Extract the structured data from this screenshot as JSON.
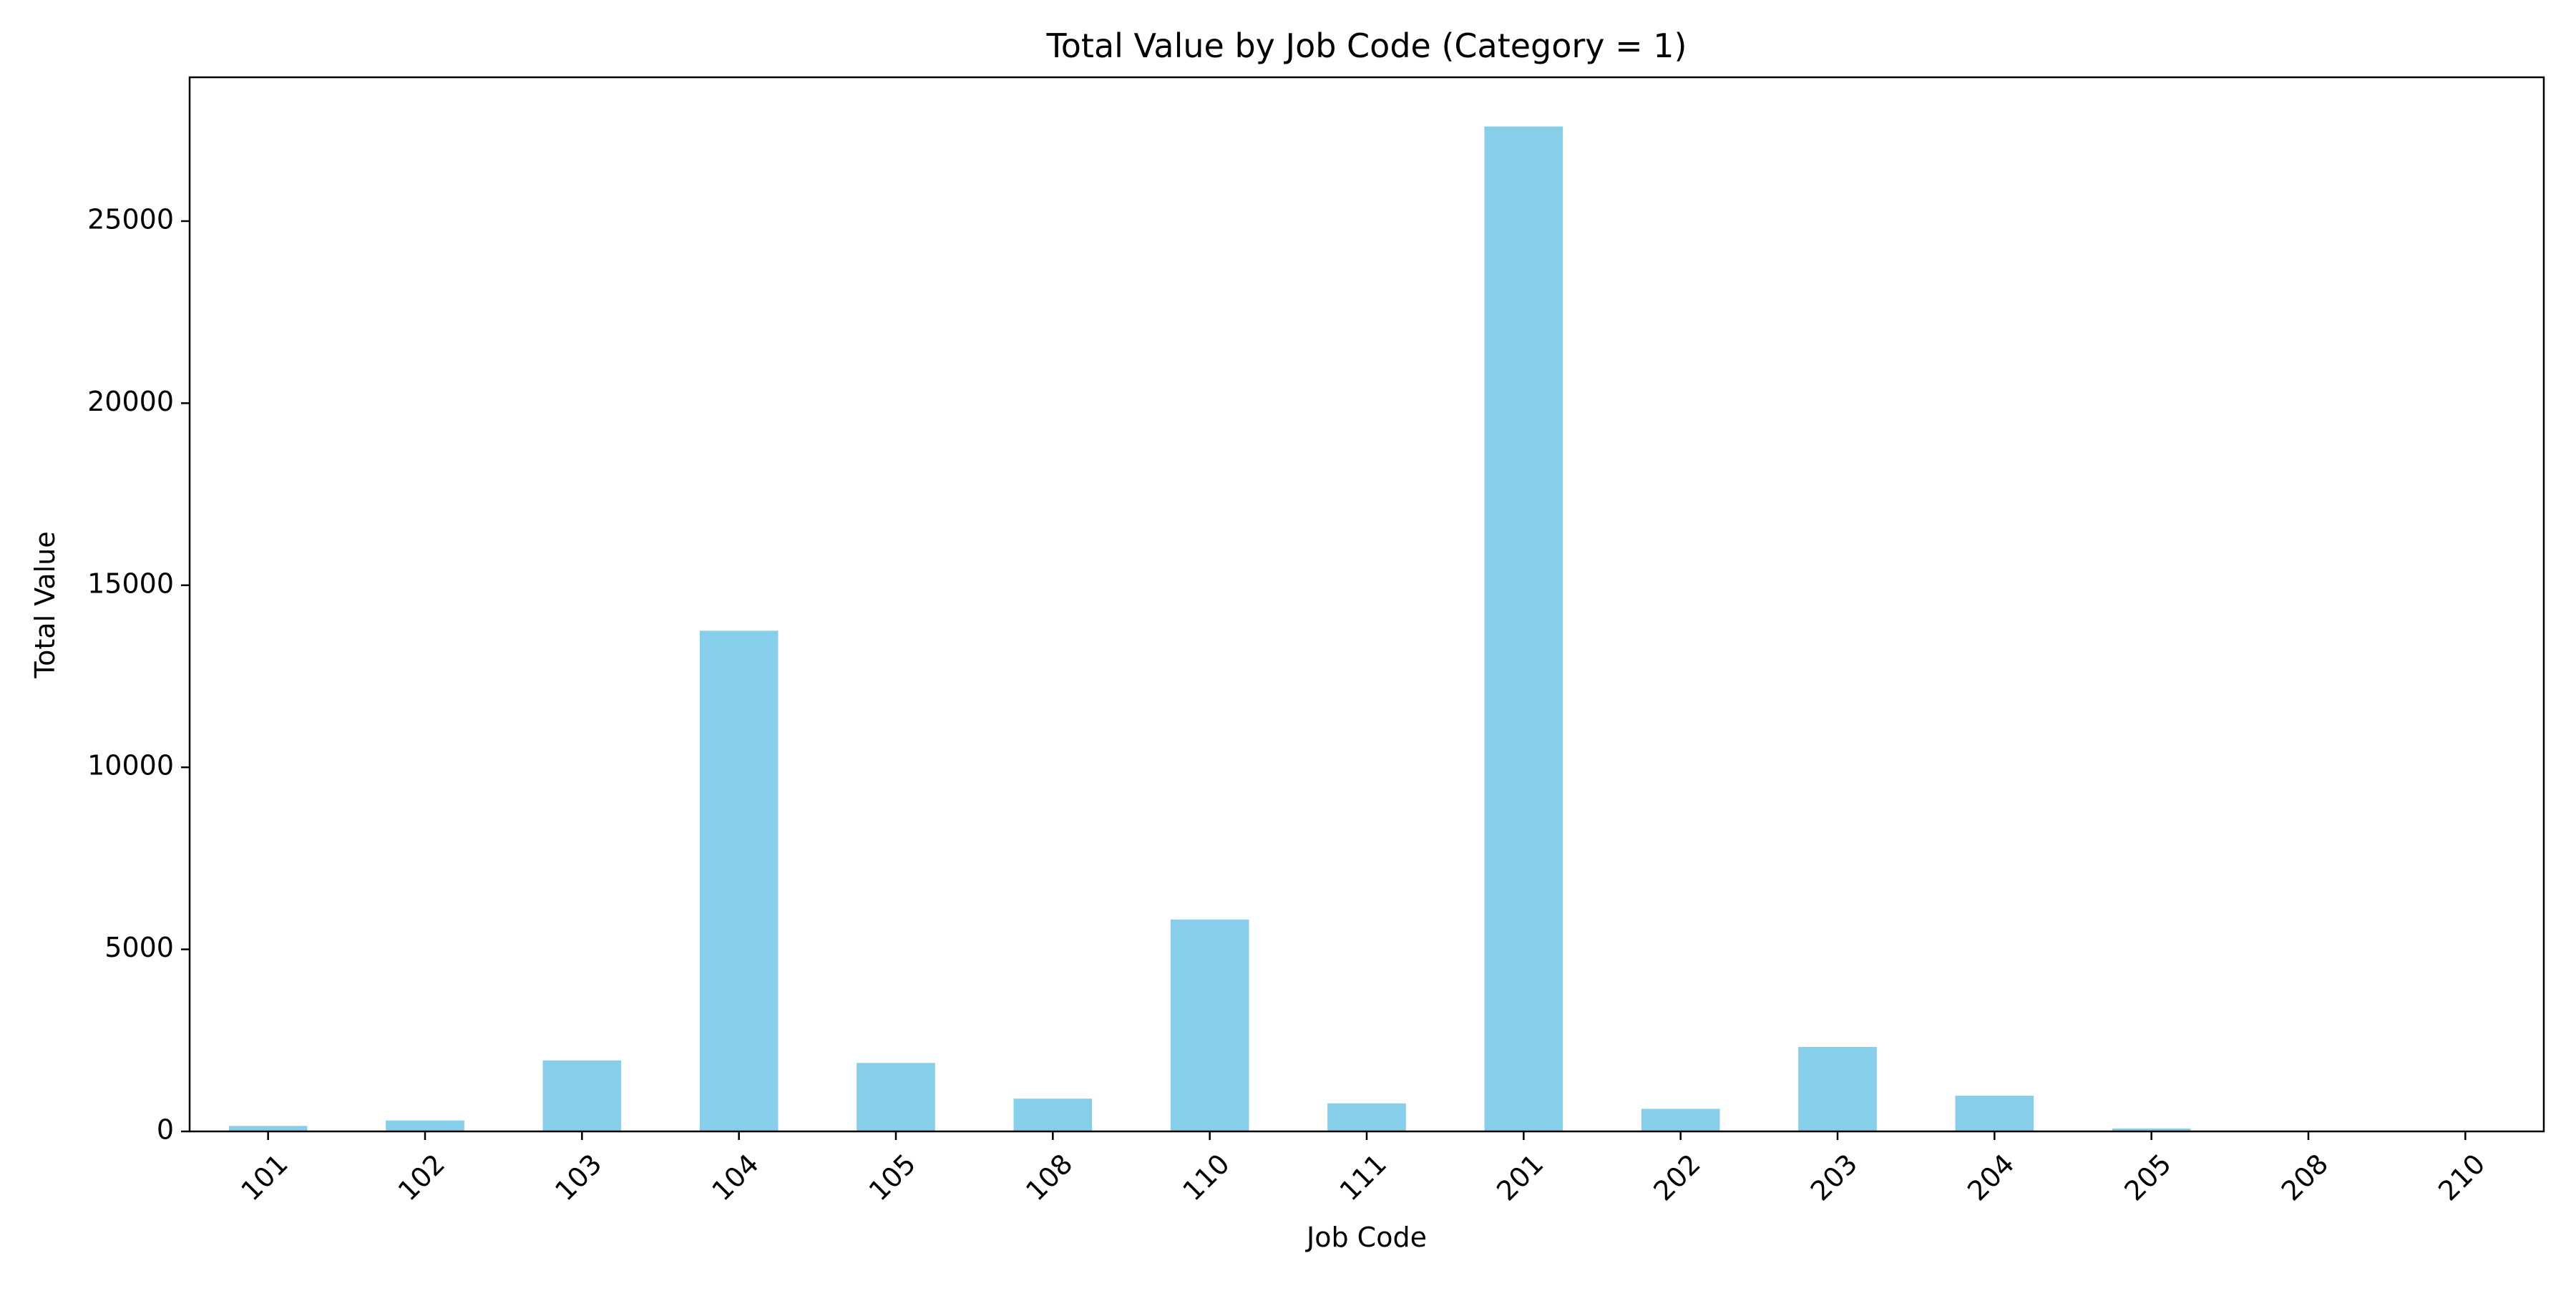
{
  "chart_data": {
    "type": "bar",
    "title": "Total Value by Job Code (Category = 1)",
    "xlabel": "Job Code",
    "ylabel": "Total Value",
    "categories": [
      "101",
      "102",
      "103",
      "104",
      "105",
      "108",
      "110",
      "111",
      "201",
      "202",
      "203",
      "204",
      "205",
      "208",
      "210"
    ],
    "values": [
      150,
      300,
      1950,
      13750,
      1880,
      900,
      5820,
      770,
      27600,
      620,
      2320,
      980,
      80,
      10,
      5
    ],
    "ylim": [
      0,
      28950
    ],
    "yticks": [
      0,
      5000,
      10000,
      15000,
      20000,
      25000
    ],
    "grid": false,
    "legend": "none",
    "colors": {
      "bar": "#87CEEB",
      "axis": "#000000",
      "background": "#ffffff"
    }
  }
}
